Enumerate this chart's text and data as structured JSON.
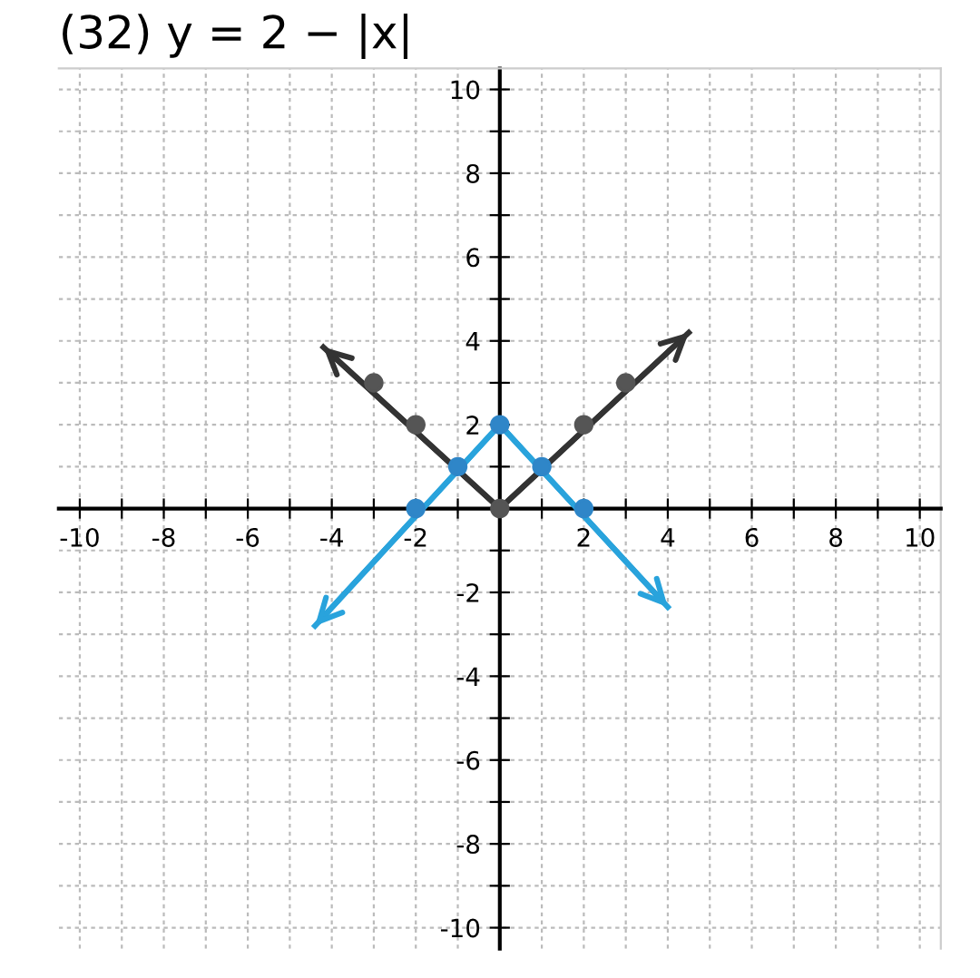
{
  "chart_data": {
    "type": "line",
    "title": "(32) y = 2 − |x|",
    "xlim": [
      -10.5,
      10.5
    ],
    "ylim": [
      -10.5,
      10.5
    ],
    "xticks": [
      {
        "value": -10,
        "label": "-10"
      },
      {
        "value": -9,
        "label": null
      },
      {
        "value": -8,
        "label": "-8"
      },
      {
        "value": -7,
        "label": null
      },
      {
        "value": -6,
        "label": "-6"
      },
      {
        "value": -5,
        "label": null
      },
      {
        "value": -4,
        "label": "-4"
      },
      {
        "value": -3,
        "label": null
      },
      {
        "value": -2,
        "label": "-2"
      },
      {
        "value": -1,
        "label": null
      },
      {
        "value": 0,
        "label": null
      },
      {
        "value": 1,
        "label": null
      },
      {
        "value": 2,
        "label": "2"
      },
      {
        "value": 3,
        "label": null
      },
      {
        "value": 4,
        "label": "4"
      },
      {
        "value": 5,
        "label": null
      },
      {
        "value": 6,
        "label": "6"
      },
      {
        "value": 7,
        "label": null
      },
      {
        "value": 8,
        "label": "8"
      },
      {
        "value": 9,
        "label": null
      },
      {
        "value": 10,
        "label": "10"
      }
    ],
    "yticks": [
      {
        "value": -10,
        "label": "-10"
      },
      {
        "value": -9,
        "label": null
      },
      {
        "value": -8,
        "label": "-8"
      },
      {
        "value": -7,
        "label": null
      },
      {
        "value": -6,
        "label": "-6"
      },
      {
        "value": -5,
        "label": null
      },
      {
        "value": -4,
        "label": "-4"
      },
      {
        "value": -3,
        "label": null
      },
      {
        "value": -2,
        "label": "-2"
      },
      {
        "value": -1,
        "label": null
      },
      {
        "value": 0,
        "label": null
      },
      {
        "value": 1,
        "label": null
      },
      {
        "value": 2,
        "label": "2"
      },
      {
        "value": 3,
        "label": null
      },
      {
        "value": 4,
        "label": "4"
      },
      {
        "value": 5,
        "label": null
      },
      {
        "value": 6,
        "label": "6"
      },
      {
        "value": 7,
        "label": null
      },
      {
        "value": 8,
        "label": "8"
      },
      {
        "value": 9,
        "label": null
      },
      {
        "value": 10,
        "label": "10"
      }
    ],
    "grid": true,
    "legend": false,
    "series": [
      {
        "color": "#333333",
        "x": [
          -4.2,
          0,
          4.5
        ],
        "values": [
          3.85,
          0,
          4.2
        ],
        "marker": "none"
      },
      {
        "color": "#29a3dc",
        "x": [
          -4.4,
          0,
          4.0
        ],
        "values": [
          -2.8,
          2,
          -2.35
        ],
        "marker": "none"
      },
      {
        "type": "scatter",
        "color": "#555555",
        "x": [
          -3,
          -2,
          0,
          2,
          3
        ],
        "values": [
          3,
          2,
          0,
          2,
          3
        ],
        "marker": "circle"
      },
      {
        "type": "scatter",
        "color": "#2f86c8",
        "x": [
          -2,
          -1,
          0,
          1,
          2
        ],
        "values": [
          0,
          1,
          2,
          1,
          0
        ],
        "marker": "circle"
      }
    ]
  }
}
